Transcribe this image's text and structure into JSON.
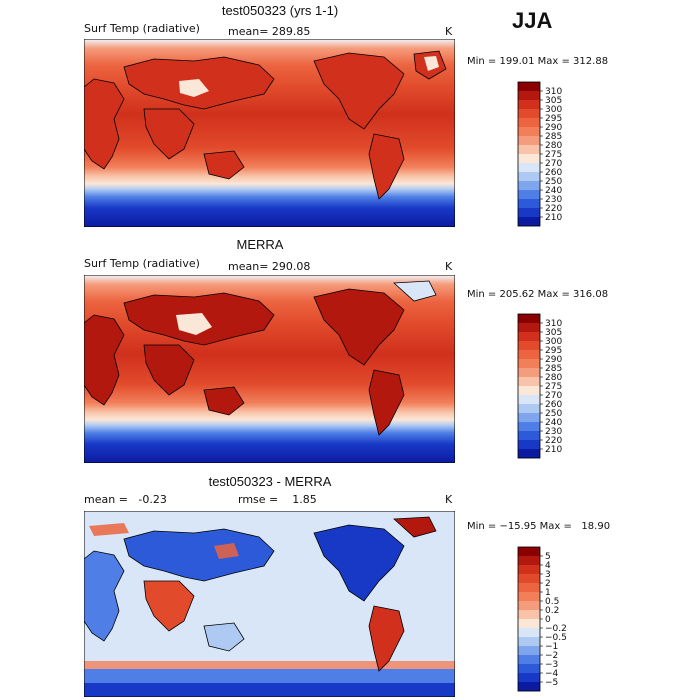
{
  "season": "JJA",
  "panels": [
    {
      "title": "test050323 (yrs 1-1)",
      "variable": "Surf Temp (radiative)",
      "stat1": "mean= 289.85",
      "stat2": "",
      "unit": "K",
      "minmax": "Min = 199.01 Max = 312.88",
      "colorbar": {
        "labels": [
          "310",
          "305",
          "300",
          "295",
          "290",
          "285",
          "280",
          "275",
          "270",
          "260",
          "250",
          "240",
          "230",
          "220",
          "210"
        ],
        "colors": [
          "#8b0000",
          "#b3180f",
          "#d0301c",
          "#e14b2b",
          "#ec6440",
          "#f27f5a",
          "#f59c7c",
          "#f8c3a8",
          "#fbe7d8",
          "#d8e6f8",
          "#aecaf3",
          "#7fa6ec",
          "#4f7fe6",
          "#2d5ad8",
          "#1838c6",
          "#0c1aa0"
        ]
      }
    },
    {
      "title": "MERRA",
      "variable": "Surf Temp (radiative)",
      "stat1": "mean= 290.08",
      "stat2": "",
      "unit": "K",
      "minmax": "Min = 205.62 Max = 316.08",
      "colorbar": {
        "labels": [
          "310",
          "305",
          "300",
          "295",
          "290",
          "285",
          "280",
          "275",
          "270",
          "260",
          "250",
          "240",
          "230",
          "220",
          "210"
        ],
        "colors": [
          "#8b0000",
          "#b3180f",
          "#d0301c",
          "#e14b2b",
          "#ec6440",
          "#f27f5a",
          "#f59c7c",
          "#f8c3a8",
          "#fbe7d8",
          "#d8e6f8",
          "#aecaf3",
          "#7fa6ec",
          "#4f7fe6",
          "#2d5ad8",
          "#1838c6",
          "#0c1aa0"
        ]
      }
    },
    {
      "title": "test050323 - MERRA",
      "variable": "",
      "stat1": "mean =   -0.23",
      "stat2": "rmse =    1.85",
      "unit": "K",
      "minmax": "Min = −15.95 Max =   18.90",
      "colorbar": {
        "labels": [
          "5",
          "4",
          "3",
          "2",
          "1",
          "0.5",
          "0.2",
          "0",
          "−0.2",
          "−0.5",
          "−1",
          "−2",
          "−3",
          "−4",
          "−5"
        ],
        "colors": [
          "#8b0000",
          "#b3180f",
          "#d0301c",
          "#e14b2b",
          "#ec6440",
          "#f27f5a",
          "#f59c7c",
          "#f8c3a8",
          "#fbe7d8",
          "#d8e6f8",
          "#aecaf3",
          "#7fa6ec",
          "#4f7fe6",
          "#2d5ad8",
          "#1838c6",
          "#0c1aa0"
        ]
      }
    }
  ]
}
